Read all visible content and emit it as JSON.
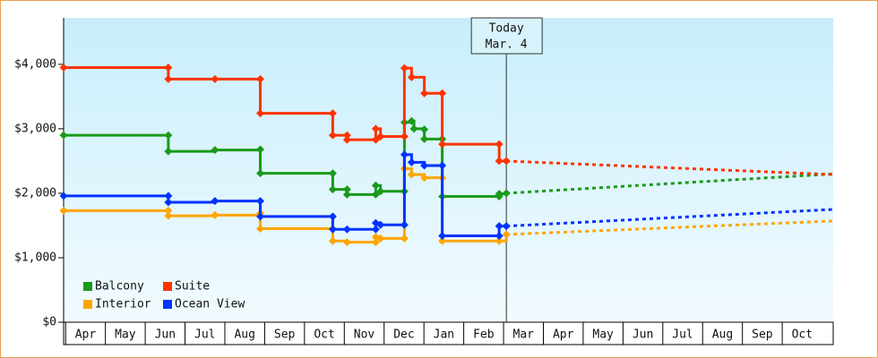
{
  "chart_data": {
    "type": "step-line",
    "ylim": [
      0,
      4720
    ],
    "yticks": [
      {
        "value": 0,
        "label": "$0"
      },
      {
        "value": 1000,
        "label": "$1,000"
      },
      {
        "value": 2000,
        "label": "$2,000"
      },
      {
        "value": 3000,
        "label": "$3,000"
      },
      {
        "value": 4000,
        "label": "$4,000"
      }
    ],
    "xlim": [
      0,
      19.33
    ],
    "xticks": [
      {
        "value": 0.55,
        "label": "Apr"
      },
      {
        "value": 1.55,
        "label": "May"
      },
      {
        "value": 2.55,
        "label": "Jun"
      },
      {
        "value": 3.55,
        "label": "Jul"
      },
      {
        "value": 4.55,
        "label": "Aug"
      },
      {
        "value": 5.55,
        "label": "Sep"
      },
      {
        "value": 6.55,
        "label": "Oct"
      },
      {
        "value": 7.55,
        "label": "Nov"
      },
      {
        "value": 8.55,
        "label": "Dec"
      },
      {
        "value": 9.55,
        "label": "Jan"
      },
      {
        "value": 10.55,
        "label": "Feb"
      },
      {
        "value": 11.55,
        "label": "Mar"
      },
      {
        "value": 12.55,
        "label": "Apr"
      },
      {
        "value": 13.55,
        "label": "May"
      },
      {
        "value": 14.55,
        "label": "Jun"
      },
      {
        "value": 15.55,
        "label": "Jul"
      },
      {
        "value": 16.55,
        "label": "Aug"
      },
      {
        "value": 17.55,
        "label": "Sep"
      },
      {
        "value": 18.55,
        "label": "Oct"
      }
    ],
    "annotation": {
      "title": "Today",
      "date": "Mar. 4",
      "x": 11.12
    },
    "series": [
      {
        "name": "Balcony",
        "color": "#1a9a1a",
        "x": [
          0,
          2.63,
          2.63,
          3.8,
          4.94,
          4.94,
          6.76,
          6.76,
          7.12,
          7.12,
          7.84,
          7.84,
          7.96,
          8.56,
          8.56,
          8.74,
          8.8,
          9.06,
          9.06,
          9.51,
          9.51,
          10.94,
          10.94,
          11.12
        ],
        "values": [
          2900,
          2900,
          2650,
          2670,
          2680,
          2310,
          2310,
          2060,
          2060,
          1980,
          1980,
          2120,
          2030,
          2030,
          3100,
          3120,
          3000,
          2990,
          2840,
          2840,
          1950,
          1950,
          1990,
          2000
        ],
        "forecast": {
          "x": [
            11.12,
            19.33
          ],
          "values": [
            2000,
            2300
          ]
        }
      },
      {
        "name": "Suite",
        "color": "#ff3300",
        "x": [
          0,
          2.63,
          2.63,
          3.8,
          4.94,
          4.94,
          6.76,
          6.76,
          7.12,
          7.12,
          7.84,
          7.84,
          7.96,
          8.56,
          8.56,
          8.74,
          9.06,
          9.51,
          9.51,
          10.94,
          10.94,
          11.12
        ],
        "values": [
          3950,
          3950,
          3770,
          3770,
          3770,
          3240,
          3240,
          2900,
          2900,
          2830,
          2830,
          3000,
          2880,
          2880,
          3940,
          3800,
          3550,
          3550,
          2760,
          2760,
          2500,
          2500
        ],
        "forecast": {
          "x": [
            11.12,
            19.33
          ],
          "values": [
            2500,
            2290
          ]
        }
      },
      {
        "name": "Interior",
        "color": "#ffa500",
        "x": [
          0,
          2.63,
          2.63,
          3.8,
          4.94,
          4.94,
          6.76,
          6.76,
          7.12,
          7.84,
          7.84,
          7.96,
          8.56,
          8.56,
          8.74,
          9.06,
          9.51,
          9.51,
          10.94,
          11.12
        ],
        "values": [
          1730,
          1730,
          1650,
          1660,
          1690,
          1450,
          1450,
          1260,
          1240,
          1240,
          1320,
          1300,
          1300,
          2380,
          2290,
          2240,
          2240,
          1260,
          1260,
          1360
        ],
        "forecast": {
          "x": [
            11.12,
            19.33
          ],
          "values": [
            1360,
            1570
          ]
        }
      },
      {
        "name": "Ocean View",
        "color": "#0033ff",
        "x": [
          0,
          2.63,
          2.63,
          3.8,
          4.94,
          4.94,
          6.76,
          6.76,
          7.12,
          7.84,
          7.84,
          7.96,
          8.56,
          8.56,
          8.74,
          9.06,
          9.51,
          9.51,
          10.94,
          10.94,
          11.12
        ],
        "values": [
          1960,
          1960,
          1860,
          1880,
          1880,
          1640,
          1640,
          1440,
          1440,
          1440,
          1540,
          1510,
          1510,
          2600,
          2480,
          2430,
          2430,
          1340,
          1340,
          1490,
          1490
        ],
        "forecast": {
          "x": [
            11.12,
            19.33
          ],
          "values": [
            1490,
            1750
          ]
        }
      }
    ]
  }
}
